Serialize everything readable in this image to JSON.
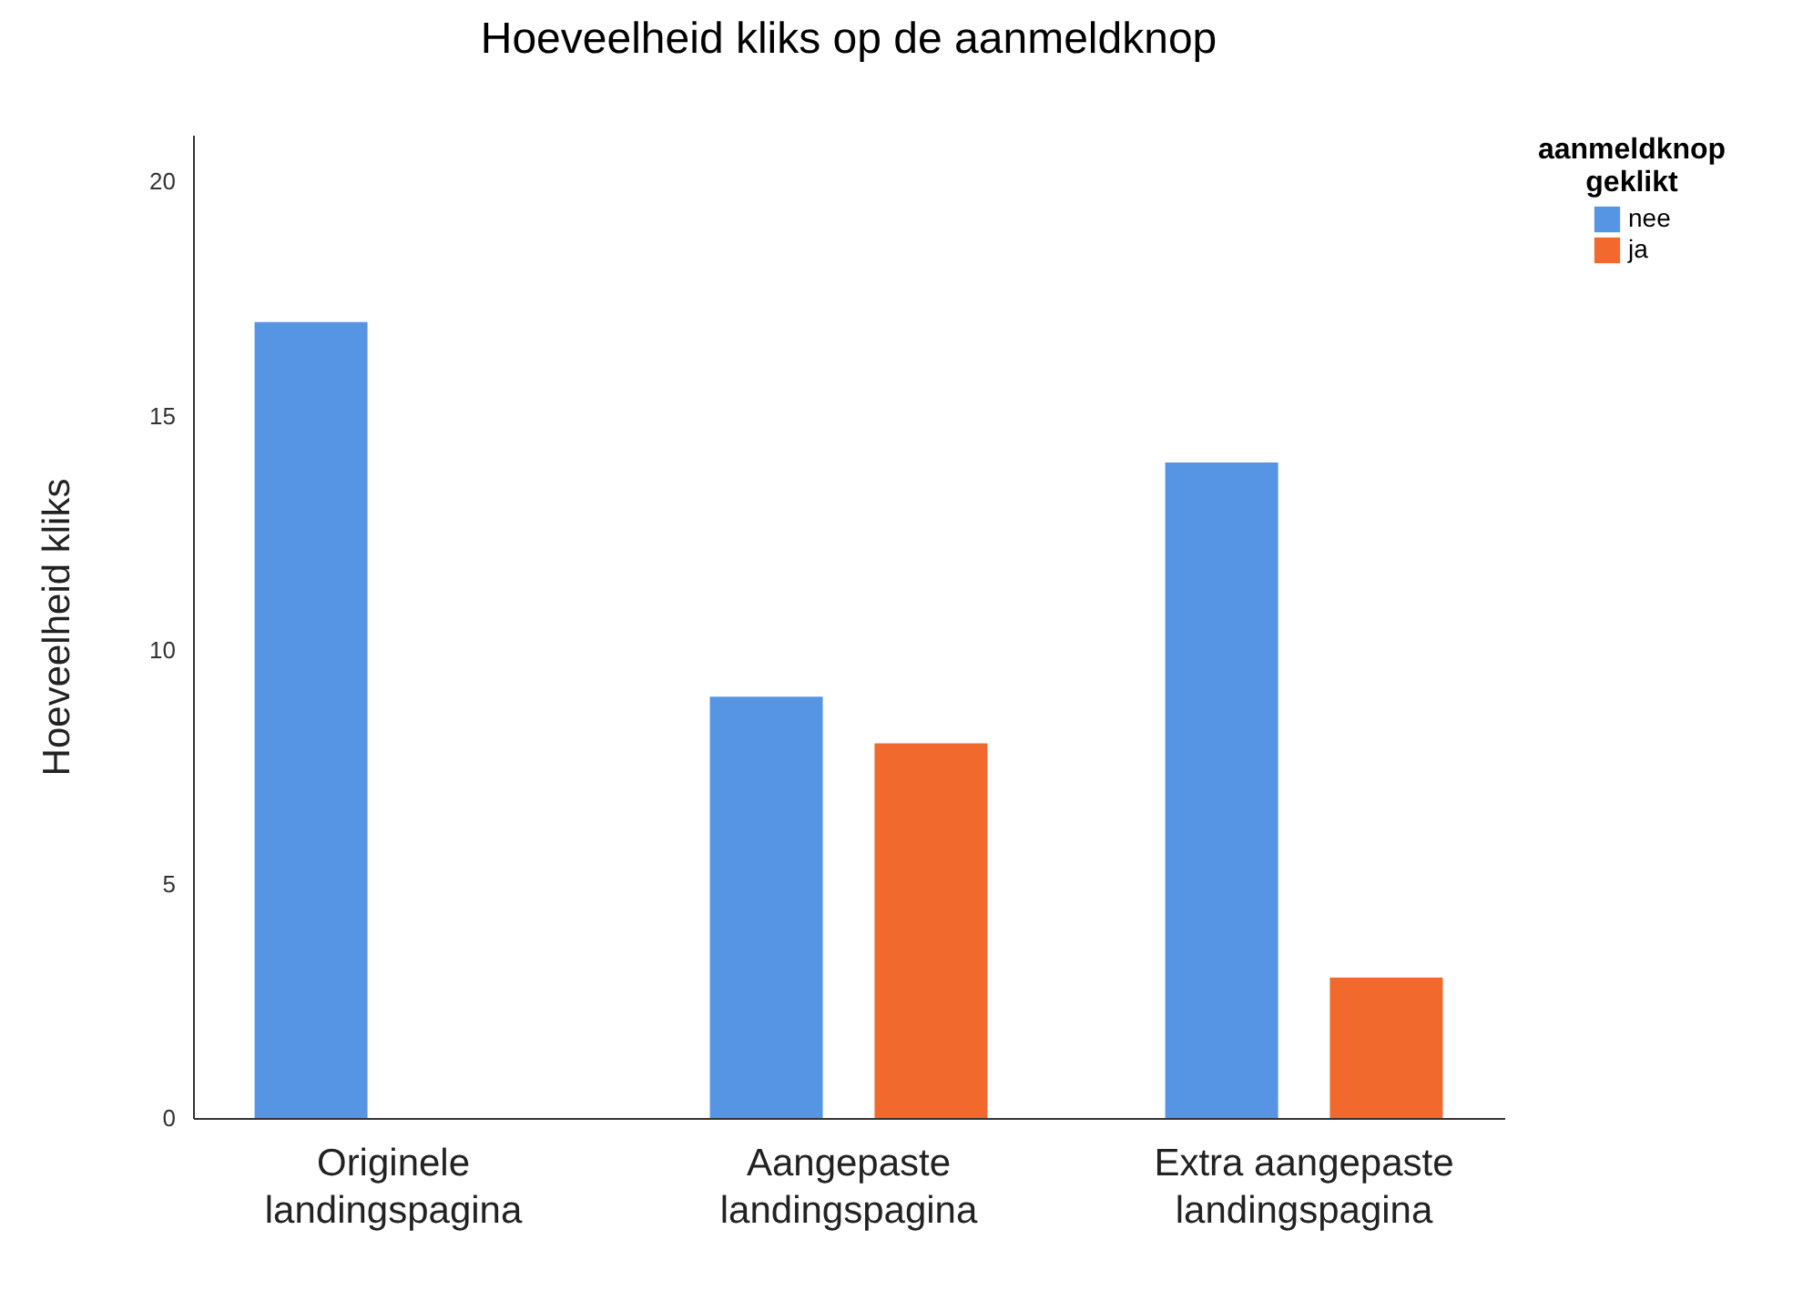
{
  "chart_data": {
    "type": "bar",
    "title": "Hoeveelheid kliks op de aanmeldknop",
    "ylabel": "Hoeveelheid kliks",
    "legend_title": "aanmeldknop geklikt",
    "legend": "right",
    "categories": [
      "Originele landingspagina",
      "Aangepaste landingspagina",
      "Extra aangepaste landingspagina"
    ],
    "series": [
      {
        "name": "nee",
        "color": "#5595e3",
        "values": [
          17,
          9,
          14
        ]
      },
      {
        "name": "ja",
        "color": "#f2692d",
        "values": [
          null,
          8,
          3
        ]
      }
    ],
    "ylim": [
      0,
      21
    ],
    "yticks": [
      0,
      5,
      10,
      15,
      20
    ]
  }
}
